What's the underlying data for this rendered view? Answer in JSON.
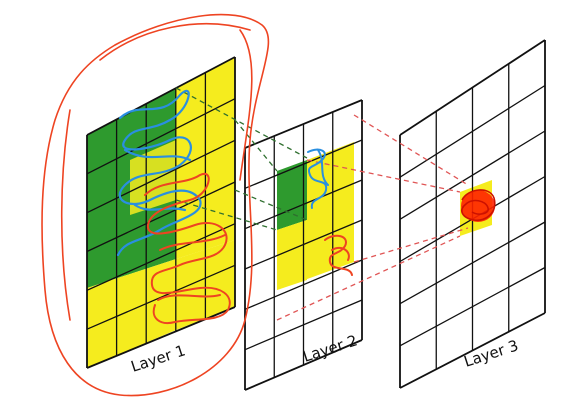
{
  "layers": [
    {
      "label": "Layer 1",
      "rows": 6,
      "cols": 5
    },
    {
      "label": "Layer 2",
      "rows": 6,
      "cols": 4
    },
    {
      "label": "Layer 3",
      "rows": 6,
      "cols": 4
    }
  ],
  "colors": {
    "grid_line": "#111111",
    "receptive_green": "#2e9a2e",
    "receptive_yellow": "#f5ec1e",
    "connector_green": "#2f6f2f",
    "connector_red": "#e05555",
    "scribble_blue": "#2a8fe0",
    "scribble_red": "#ee4422",
    "layer3_dot": "#ff2200"
  }
}
